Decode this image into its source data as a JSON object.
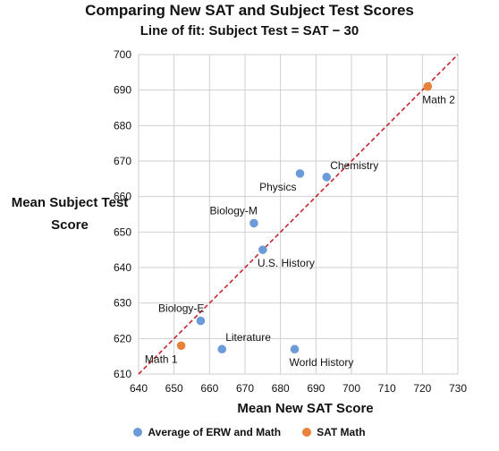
{
  "chart_data": {
    "type": "scatter",
    "title": "Comparing New SAT and Subject Test Scores",
    "subtitle": "Line of fit: Subject Test = SAT − 30",
    "xlabel": "Mean New SAT Score",
    "ylabel": "Mean Subject Test Score",
    "xlim": [
      640,
      730
    ],
    "ylim": [
      610,
      700
    ],
    "x_ticks": [
      640,
      650,
      660,
      670,
      680,
      690,
      700,
      710,
      720,
      730
    ],
    "y_ticks": [
      610,
      620,
      630,
      640,
      650,
      660,
      670,
      680,
      690,
      700
    ],
    "grid": true,
    "legend_position": "bottom",
    "fit_line": {
      "slope": 1,
      "intercept": -30,
      "color": "#c1272d",
      "style": "dashed"
    },
    "series": [
      {
        "name": "Average of ERW and Math",
        "color": "#6b9bd8",
        "points": [
          {
            "label": "Physics",
            "x": 685.5,
            "y": 666.5,
            "label_pos": "below-left"
          },
          {
            "label": "Chemistry",
            "x": 693,
            "y": 665.5,
            "label_pos": "above-right"
          },
          {
            "label": "Biology-M",
            "x": 672.5,
            "y": 652.5,
            "label_pos": "above-left"
          },
          {
            "label": "U.S. History",
            "x": 675,
            "y": 645,
            "label_pos": "below-right"
          },
          {
            "label": "Biology-E",
            "x": 657.5,
            "y": 625,
            "label_pos": "above-left"
          },
          {
            "label": "Literature",
            "x": 663.5,
            "y": 617,
            "label_pos": "above-right"
          },
          {
            "label": "World History",
            "x": 684,
            "y": 617,
            "label_pos": "below-right"
          }
        ]
      },
      {
        "name": "SAT Math",
        "color": "#e8823a",
        "points": [
          {
            "label": "Math 2",
            "x": 721.5,
            "y": 691,
            "label_pos": "below-right"
          },
          {
            "label": "Math 1",
            "x": 652,
            "y": 618,
            "label_pos": "below-left"
          }
        ]
      }
    ]
  }
}
